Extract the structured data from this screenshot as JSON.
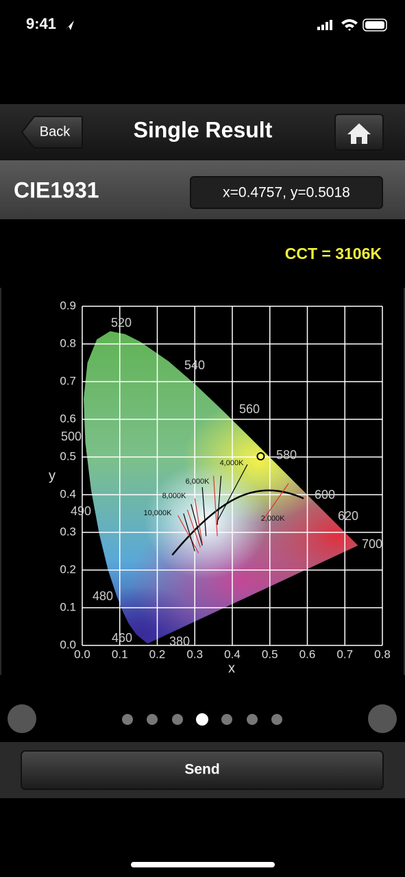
{
  "status_bar": {
    "time": "9:41"
  },
  "nav": {
    "back": "Back",
    "title": "Single Result"
  },
  "header": {
    "label": "CIE1931",
    "coordinates": "x=0.4757, y=0.5018"
  },
  "cct": "CCT = 3106K",
  "chart_data": {
    "type": "scatter",
    "x_label": "x",
    "y_label": "y",
    "x": [
      0.4757
    ],
    "values": [
      0.5018
    ],
    "color": "#ffff66",
    "xlim": [
      0,
      0.8
    ],
    "ylim": [
      0,
      0.9
    ],
    "xticks": [
      {
        "value": 0,
        "label": "0.0"
      },
      0.1,
      0.2,
      0.3,
      0.4,
      0.5,
      0.6,
      0.7,
      0.8
    ],
    "yticks": [
      {
        "value": 0,
        "label": "0.0"
      },
      0.1,
      0.2,
      0.3,
      0.4,
      0.5,
      0.6,
      0.7,
      0.8,
      0.9
    ],
    "grid": true,
    "wavelength_labels": [
      "520",
      "540",
      "560",
      "580",
      "600",
      "620",
      "700",
      "500",
      "490",
      "480",
      "460",
      "380"
    ],
    "cct_labels": [
      "10,000K",
      "8,000K",
      "6,000K",
      "4,000K",
      "2,000K"
    ]
  },
  "button": "Send"
}
